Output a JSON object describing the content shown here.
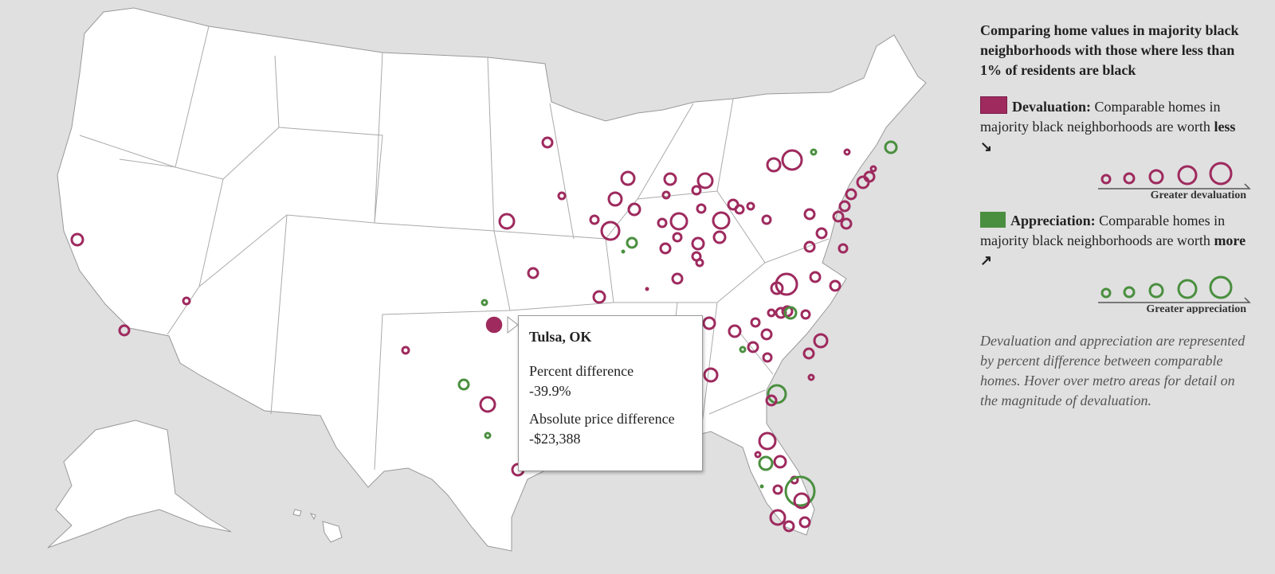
{
  "legend": {
    "title": "Comparing home values in majority black neighborhoods with those where less than 1% of residents are black",
    "devaluation": {
      "term": "Devaluation:",
      "text": "Comparable homes in majority black neighborhoods are worth",
      "emphasis": "less ↘",
      "scale_label": "Greater devaluation"
    },
    "appreciation": {
      "term": "Appreciation:",
      "text": "Comparable homes in majority black neighborhoods are worth",
      "emphasis": "more ↗",
      "scale_label": "Greater appreciation"
    },
    "note": "Devaluation and appreciation are represented by percent difference between comparable homes. Hover over metro areas for detail on the magnitude of devaluation."
  },
  "tooltip": {
    "title": "Tulsa, OK",
    "fields": [
      {
        "label": "Percent difference",
        "value": "-39.9%"
      },
      {
        "label": "Absolute price difference",
        "value": "-$23,388"
      }
    ]
  }
}
